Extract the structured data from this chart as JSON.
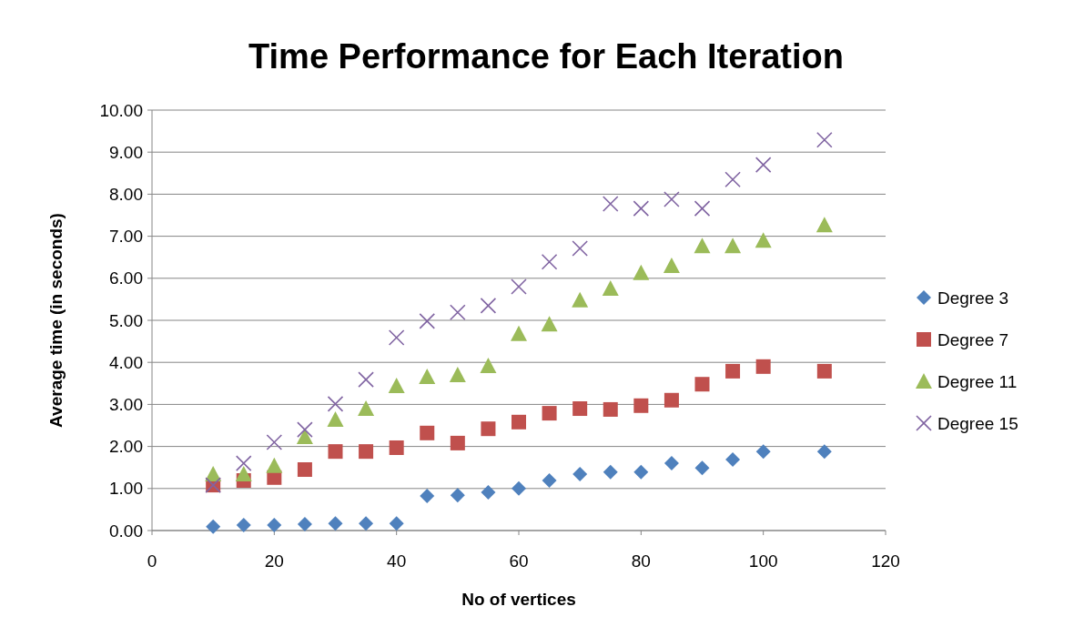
{
  "chart_data": {
    "type": "scatter",
    "title": "Time Performance for Each Iteration",
    "xlabel": "No of vertices",
    "ylabel": "Average time (in seconds)",
    "x": [
      10,
      15,
      20,
      25,
      30,
      35,
      40,
      45,
      50,
      55,
      60,
      65,
      70,
      75,
      80,
      85,
      90,
      95,
      100,
      110
    ],
    "xlim": [
      0,
      120
    ],
    "xticks": [
      0,
      20,
      40,
      60,
      80,
      100,
      120
    ],
    "ylim": [
      0,
      10
    ],
    "yticks": [
      {
        "value": 0,
        "label": "0.00"
      },
      {
        "value": 1,
        "label": "1.00"
      },
      {
        "value": 2,
        "label": "2.00"
      },
      {
        "value": 3,
        "label": "3.00"
      },
      {
        "value": 4,
        "label": "4.00"
      },
      {
        "value": 5,
        "label": "5.00"
      },
      {
        "value": 6,
        "label": "6.00"
      },
      {
        "value": 7,
        "label": "7.00"
      },
      {
        "value": 8,
        "label": "8.00"
      },
      {
        "value": 9,
        "label": "9.00"
      },
      {
        "value": 10,
        "label": "10.00"
      }
    ],
    "grid": "y",
    "legend": "right",
    "series": [
      {
        "name": "Degree 3",
        "color": "#4f81bd",
        "marker": "diamond",
        "values": [
          0.09,
          0.13,
          0.13,
          0.15,
          0.17,
          0.17,
          0.17,
          0.82,
          0.84,
          0.91,
          1.0,
          1.19,
          1.34,
          1.39,
          1.39,
          1.6,
          1.49,
          1.69,
          1.88,
          1.88
        ]
      },
      {
        "name": "Degree 7",
        "color": "#c0504d",
        "marker": "square",
        "values": [
          1.08,
          1.19,
          1.26,
          1.45,
          1.88,
          1.88,
          1.97,
          2.32,
          2.08,
          2.42,
          2.58,
          2.79,
          2.9,
          2.88,
          2.97,
          3.1,
          3.48,
          3.79,
          3.9,
          3.79
        ]
      },
      {
        "name": "Degree 11",
        "color": "#9bbb59",
        "marker": "triangle",
        "values": [
          1.34,
          1.34,
          1.54,
          2.23,
          2.64,
          2.9,
          3.44,
          3.66,
          3.7,
          3.92,
          4.68,
          4.91,
          5.48,
          5.76,
          6.13,
          6.3,
          6.77,
          6.77,
          6.9,
          7.27
        ]
      },
      {
        "name": "Degree 15",
        "color": "#8064a2",
        "marker": "cross",
        "values": [
          1.08,
          1.6,
          2.1,
          2.4,
          3.01,
          3.59,
          4.59,
          4.98,
          5.19,
          5.35,
          5.8,
          6.39,
          6.71,
          7.77,
          7.66,
          7.88,
          7.66,
          8.35,
          8.7,
          9.29
        ]
      }
    ]
  }
}
